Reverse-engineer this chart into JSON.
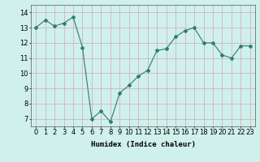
{
  "x": [
    0,
    1,
    2,
    3,
    4,
    5,
    6,
    7,
    8,
    9,
    10,
    11,
    12,
    13,
    14,
    15,
    16,
    17,
    18,
    19,
    20,
    21,
    22,
    23
  ],
  "y": [
    13.0,
    13.5,
    13.1,
    13.3,
    13.7,
    11.7,
    7.0,
    7.5,
    6.8,
    8.7,
    9.2,
    9.8,
    10.2,
    11.5,
    11.6,
    12.4,
    12.8,
    13.0,
    12.0,
    12.0,
    11.2,
    11.0,
    11.8,
    11.8
  ],
  "line_color": "#2e7d6e",
  "marker": "D",
  "marker_size": 2,
  "bg_color": "#cff0eb",
  "grid_color_minor": "#d4a8b8",
  "grid_color_major": "#d4a8b8",
  "xlabel": "Humidex (Indice chaleur)",
  "ylim": [
    6.5,
    14.5
  ],
  "xlim": [
    -0.5,
    23.5
  ],
  "yticks": [
    7,
    8,
    9,
    10,
    11,
    12,
    13,
    14
  ],
  "xticks": [
    0,
    1,
    2,
    3,
    4,
    5,
    6,
    7,
    8,
    9,
    10,
    11,
    12,
    13,
    14,
    15,
    16,
    17,
    18,
    19,
    20,
    21,
    22,
    23
  ],
  "xlabel_fontsize": 6.5,
  "tick_fontsize": 6
}
